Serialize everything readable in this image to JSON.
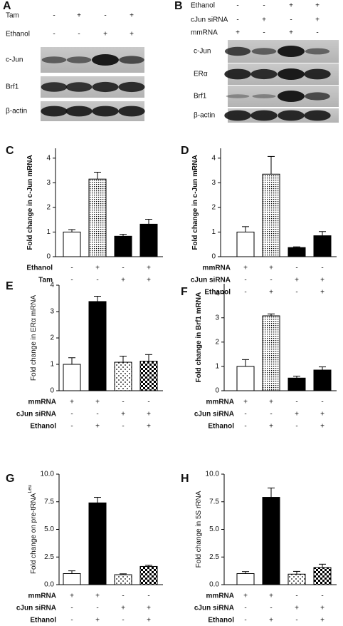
{
  "blots": [
    {
      "panel": "A",
      "conditions": [
        {
          "label": "Tam",
          "signs": [
            "-",
            "+",
            "-",
            "+"
          ]
        },
        {
          "label": "Ethanol",
          "signs": [
            "-",
            "-",
            "+",
            "+"
          ]
        }
      ],
      "bands": [
        "c-Jun",
        "Brf1",
        "β-actin"
      ]
    },
    {
      "panel": "B",
      "conditions": [
        {
          "label": "Ethanol",
          "signs": [
            "-",
            "-",
            "+",
            "+"
          ]
        },
        {
          "label": "cJun siRNA",
          "signs": [
            "-",
            "+",
            "-",
            "+"
          ]
        },
        {
          "label": "mmRNA",
          "signs": [
            "+",
            "-",
            "+",
            "-"
          ]
        }
      ],
      "bands": [
        "c-Jun",
        "ERα",
        "Brf1",
        "β-actin"
      ]
    }
  ],
  "chart_data": [
    {
      "type": "bar",
      "panel": "C",
      "ylabel": "Fold change in c-Jun mRNA",
      "ylim": [
        0,
        4.4
      ],
      "yticks": [
        0,
        1,
        2,
        3,
        4
      ],
      "values": [
        1.0,
        3.15,
        0.83,
        1.32
      ],
      "errors": [
        0.1,
        0.28,
        0.08,
        0.2
      ],
      "bar_styles": [
        "white",
        "dots",
        "black",
        "black"
      ],
      "conditions": [
        {
          "label": "Ethanol",
          "signs": [
            "-",
            "+",
            "-",
            "+"
          ]
        },
        {
          "label": "Tam",
          "signs": [
            "-",
            "-",
            "+",
            "+"
          ]
        }
      ]
    },
    {
      "type": "bar",
      "panel": "D",
      "ylabel": "Fold change in c-Jun mRNA",
      "ylim": [
        0,
        4.4
      ],
      "yticks": [
        0,
        1,
        2,
        3,
        4
      ],
      "values": [
        1.0,
        3.35,
        0.37,
        0.85
      ],
      "errors": [
        0.22,
        0.72,
        0.03,
        0.17
      ],
      "bar_styles": [
        "white",
        "dots",
        "black",
        "black"
      ],
      "conditions": [
        {
          "label": "mmRNA",
          "signs": [
            "+",
            "+",
            "-",
            "-"
          ]
        },
        {
          "label": "cJun siRNA",
          "signs": [
            "-",
            "-",
            "+",
            "+"
          ]
        },
        {
          "label": "Ethanol",
          "signs": [
            "-",
            "+",
            "-",
            "+"
          ]
        }
      ]
    },
    {
      "type": "bar",
      "panel": "E",
      "ylabel": "Fold change in ERα mRNA",
      "ylim": [
        0,
        4
      ],
      "yticks": [
        0,
        1,
        2,
        3,
        4
      ],
      "values": [
        1.0,
        3.38,
        1.08,
        1.12
      ],
      "errors": [
        0.25,
        0.2,
        0.23,
        0.25
      ],
      "bar_styles": [
        "white",
        "black",
        "sparse-dots",
        "checker"
      ],
      "conditions": [
        {
          "label": "mmRNA",
          "signs": [
            "+",
            "+",
            "-",
            "-"
          ]
        },
        {
          "label": "cJun siRNA",
          "signs": [
            "-",
            "-",
            "+",
            "+"
          ]
        },
        {
          "label": "Ethanol",
          "signs": [
            "-",
            "+",
            "-",
            "+"
          ]
        }
      ]
    },
    {
      "type": "bar",
      "panel": "F",
      "ylabel": "Fold change in Brf1 mRNA",
      "ylim": [
        0,
        4.4
      ],
      "yticks": [
        0,
        1,
        2,
        3,
        4
      ],
      "values": [
        1.0,
        3.08,
        0.52,
        0.85
      ],
      "errors": [
        0.28,
        0.08,
        0.08,
        0.13
      ],
      "bar_styles": [
        "white",
        "dots",
        "black",
        "black"
      ],
      "conditions": [
        {
          "label": "mmRNA",
          "signs": [
            "+",
            "+",
            "-",
            "-"
          ]
        },
        {
          "label": "cJun siRNA",
          "signs": [
            "-",
            "-",
            "+",
            "+"
          ]
        },
        {
          "label": "Ethanol",
          "signs": [
            "-",
            "+",
            "-",
            "+"
          ]
        }
      ]
    },
    {
      "type": "bar",
      "panel": "G",
      "ylabel": "Fold change on pre-tRNA",
      "ylabel_superscript": "Leu",
      "ylim": [
        0,
        10
      ],
      "yticks": [
        {
          "value": 0,
          "label": "0.0"
        },
        {
          "value": 2.5,
          "label": "2.5"
        },
        {
          "value": 5,
          "label": "5.0"
        },
        {
          "value": 7.5,
          "label": "7.5"
        },
        {
          "value": 10,
          "label": "10.0"
        }
      ],
      "values": [
        1.0,
        7.4,
        0.9,
        1.65
      ],
      "errors": [
        0.25,
        0.5,
        0.08,
        0.1
      ],
      "bar_styles": [
        "white",
        "black",
        "sparse-dots",
        "checker"
      ],
      "conditions": [
        {
          "label": "mmRNA",
          "signs": [
            "+",
            "+",
            "-",
            "-"
          ]
        },
        {
          "label": "cJun siRNA",
          "signs": [
            "-",
            "-",
            "+",
            "+"
          ]
        },
        {
          "label": "Ethanol",
          "signs": [
            "-",
            "+",
            "-",
            "+"
          ]
        }
      ]
    },
    {
      "type": "bar",
      "panel": "H",
      "ylabel": "Fold change in 5S rRNA",
      "ylim": [
        0,
        10
      ],
      "yticks": [
        {
          "value": 0,
          "label": "0.0"
        },
        {
          "value": 2.5,
          "label": "2.5"
        },
        {
          "value": 5,
          "label": "5.0"
        },
        {
          "value": 7.5,
          "label": "7.5"
        },
        {
          "value": 10,
          "label": "10.0"
        }
      ],
      "values": [
        1.0,
        7.9,
        0.95,
        1.55
      ],
      "errors": [
        0.18,
        0.85,
        0.25,
        0.3
      ],
      "bar_styles": [
        "white",
        "black",
        "sparse-dots",
        "checker"
      ],
      "conditions": [
        {
          "label": "mmRNA",
          "signs": [
            "+",
            "+",
            "-",
            "-"
          ]
        },
        {
          "label": "cJun siRNA",
          "signs": [
            "-",
            "-",
            "+",
            "+"
          ]
        },
        {
          "label": "Ethanol",
          "signs": [
            "-",
            "+",
            "-",
            "+"
          ]
        }
      ]
    }
  ]
}
